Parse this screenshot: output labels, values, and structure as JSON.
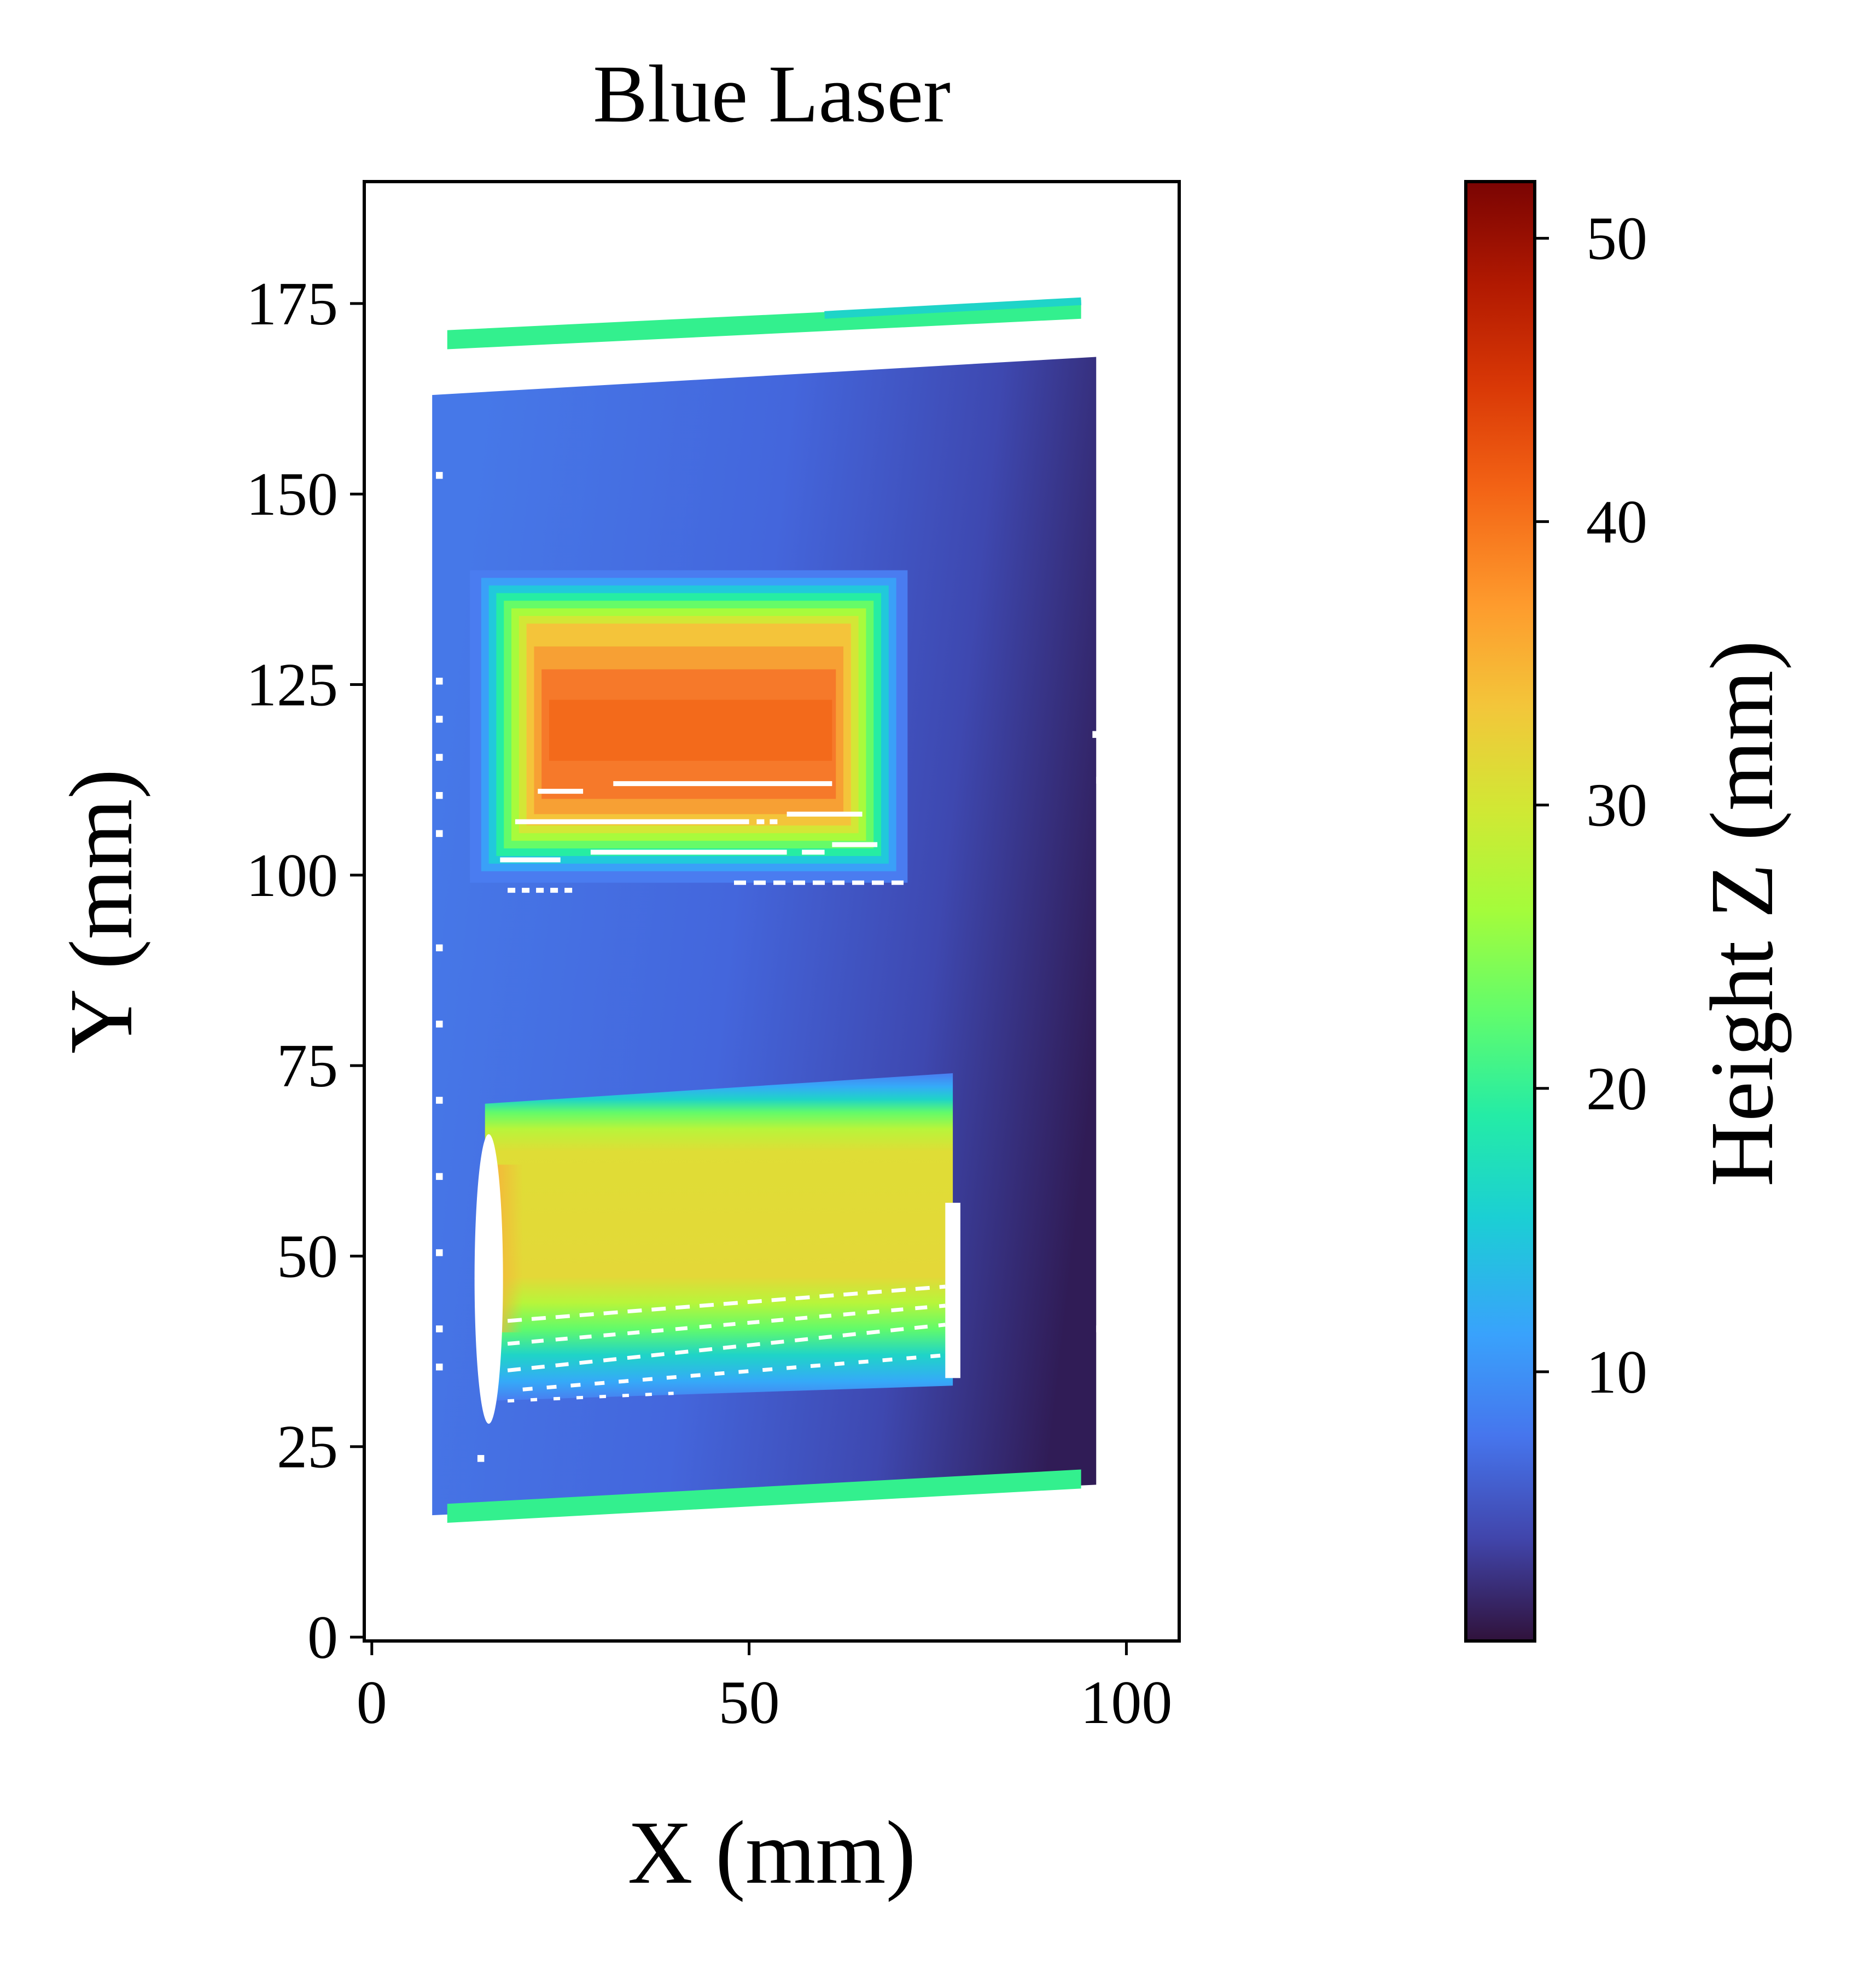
{
  "chart_data": {
    "type": "heatmap",
    "title": "Blue Laser",
    "xlabel": "X (mm)",
    "ylabel": "Y (mm)",
    "xlim": [
      -1,
      107
    ],
    "ylim": [
      -0.5,
      191
    ],
    "xticks": [
      0,
      50,
      100
    ],
    "yticks": [
      0,
      25,
      50,
      75,
      100,
      125,
      150,
      175
    ],
    "colorbar": {
      "label": "Height Z (mm)",
      "colormap": "turbo",
      "range": [
        0.5,
        52
      ],
      "ticks": [
        10,
        20,
        30,
        40,
        50
      ]
    },
    "regions": [
      {
        "name": "base plate",
        "x": [
          8,
          96
        ],
        "y": [
          16,
          168
        ],
        "z_left": 7,
        "z_right": 2
      },
      {
        "name": "top edge strip",
        "x": [
          10,
          94
        ],
        "y": [
          169,
          175
        ],
        "z": 20.5
      },
      {
        "name": "bottom edge strip",
        "x": [
          10,
          94
        ],
        "y": [
          15,
          21
        ],
        "z": 20.5
      },
      {
        "name": "upper block",
        "x": [
          13,
          71
        ],
        "y": [
          99,
          140
        ],
        "z_edge": 9,
        "z_top": 43
      },
      {
        "name": "lower block",
        "x": [
          15,
          77
        ],
        "y": [
          30,
          73
        ],
        "z_edge": 8,
        "z_top": 32
      }
    ],
    "grid": false
  }
}
